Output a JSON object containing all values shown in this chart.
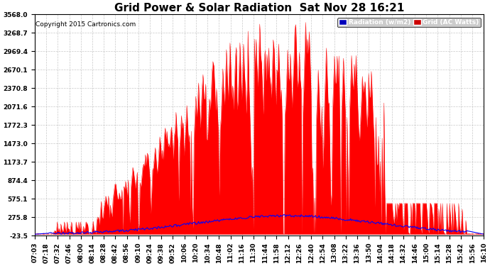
{
  "title": "Grid Power & Solar Radiation  Sat Nov 28 16:21",
  "copyright": "Copyright 2015 Cartronics.com",
  "legend_radiation": "Radiation (w/m2)",
  "legend_grid": "Grid (AC Watts)",
  "ylim_min": -23.5,
  "ylim_max": 3568.0,
  "yticks": [
    3568.0,
    3268.7,
    2969.4,
    2670.1,
    2370.8,
    2071.6,
    1772.3,
    1473.0,
    1173.7,
    874.4,
    575.1,
    275.8,
    -23.5
  ],
  "radiation_color": "#0000ff",
  "grid_color": "#ff0000",
  "background_color": "#ffffff",
  "title_fontsize": 11,
  "tick_fontsize": 6.5,
  "legend_bg_radiation": "#0000bb",
  "legend_bg_grid": "#cc0000"
}
